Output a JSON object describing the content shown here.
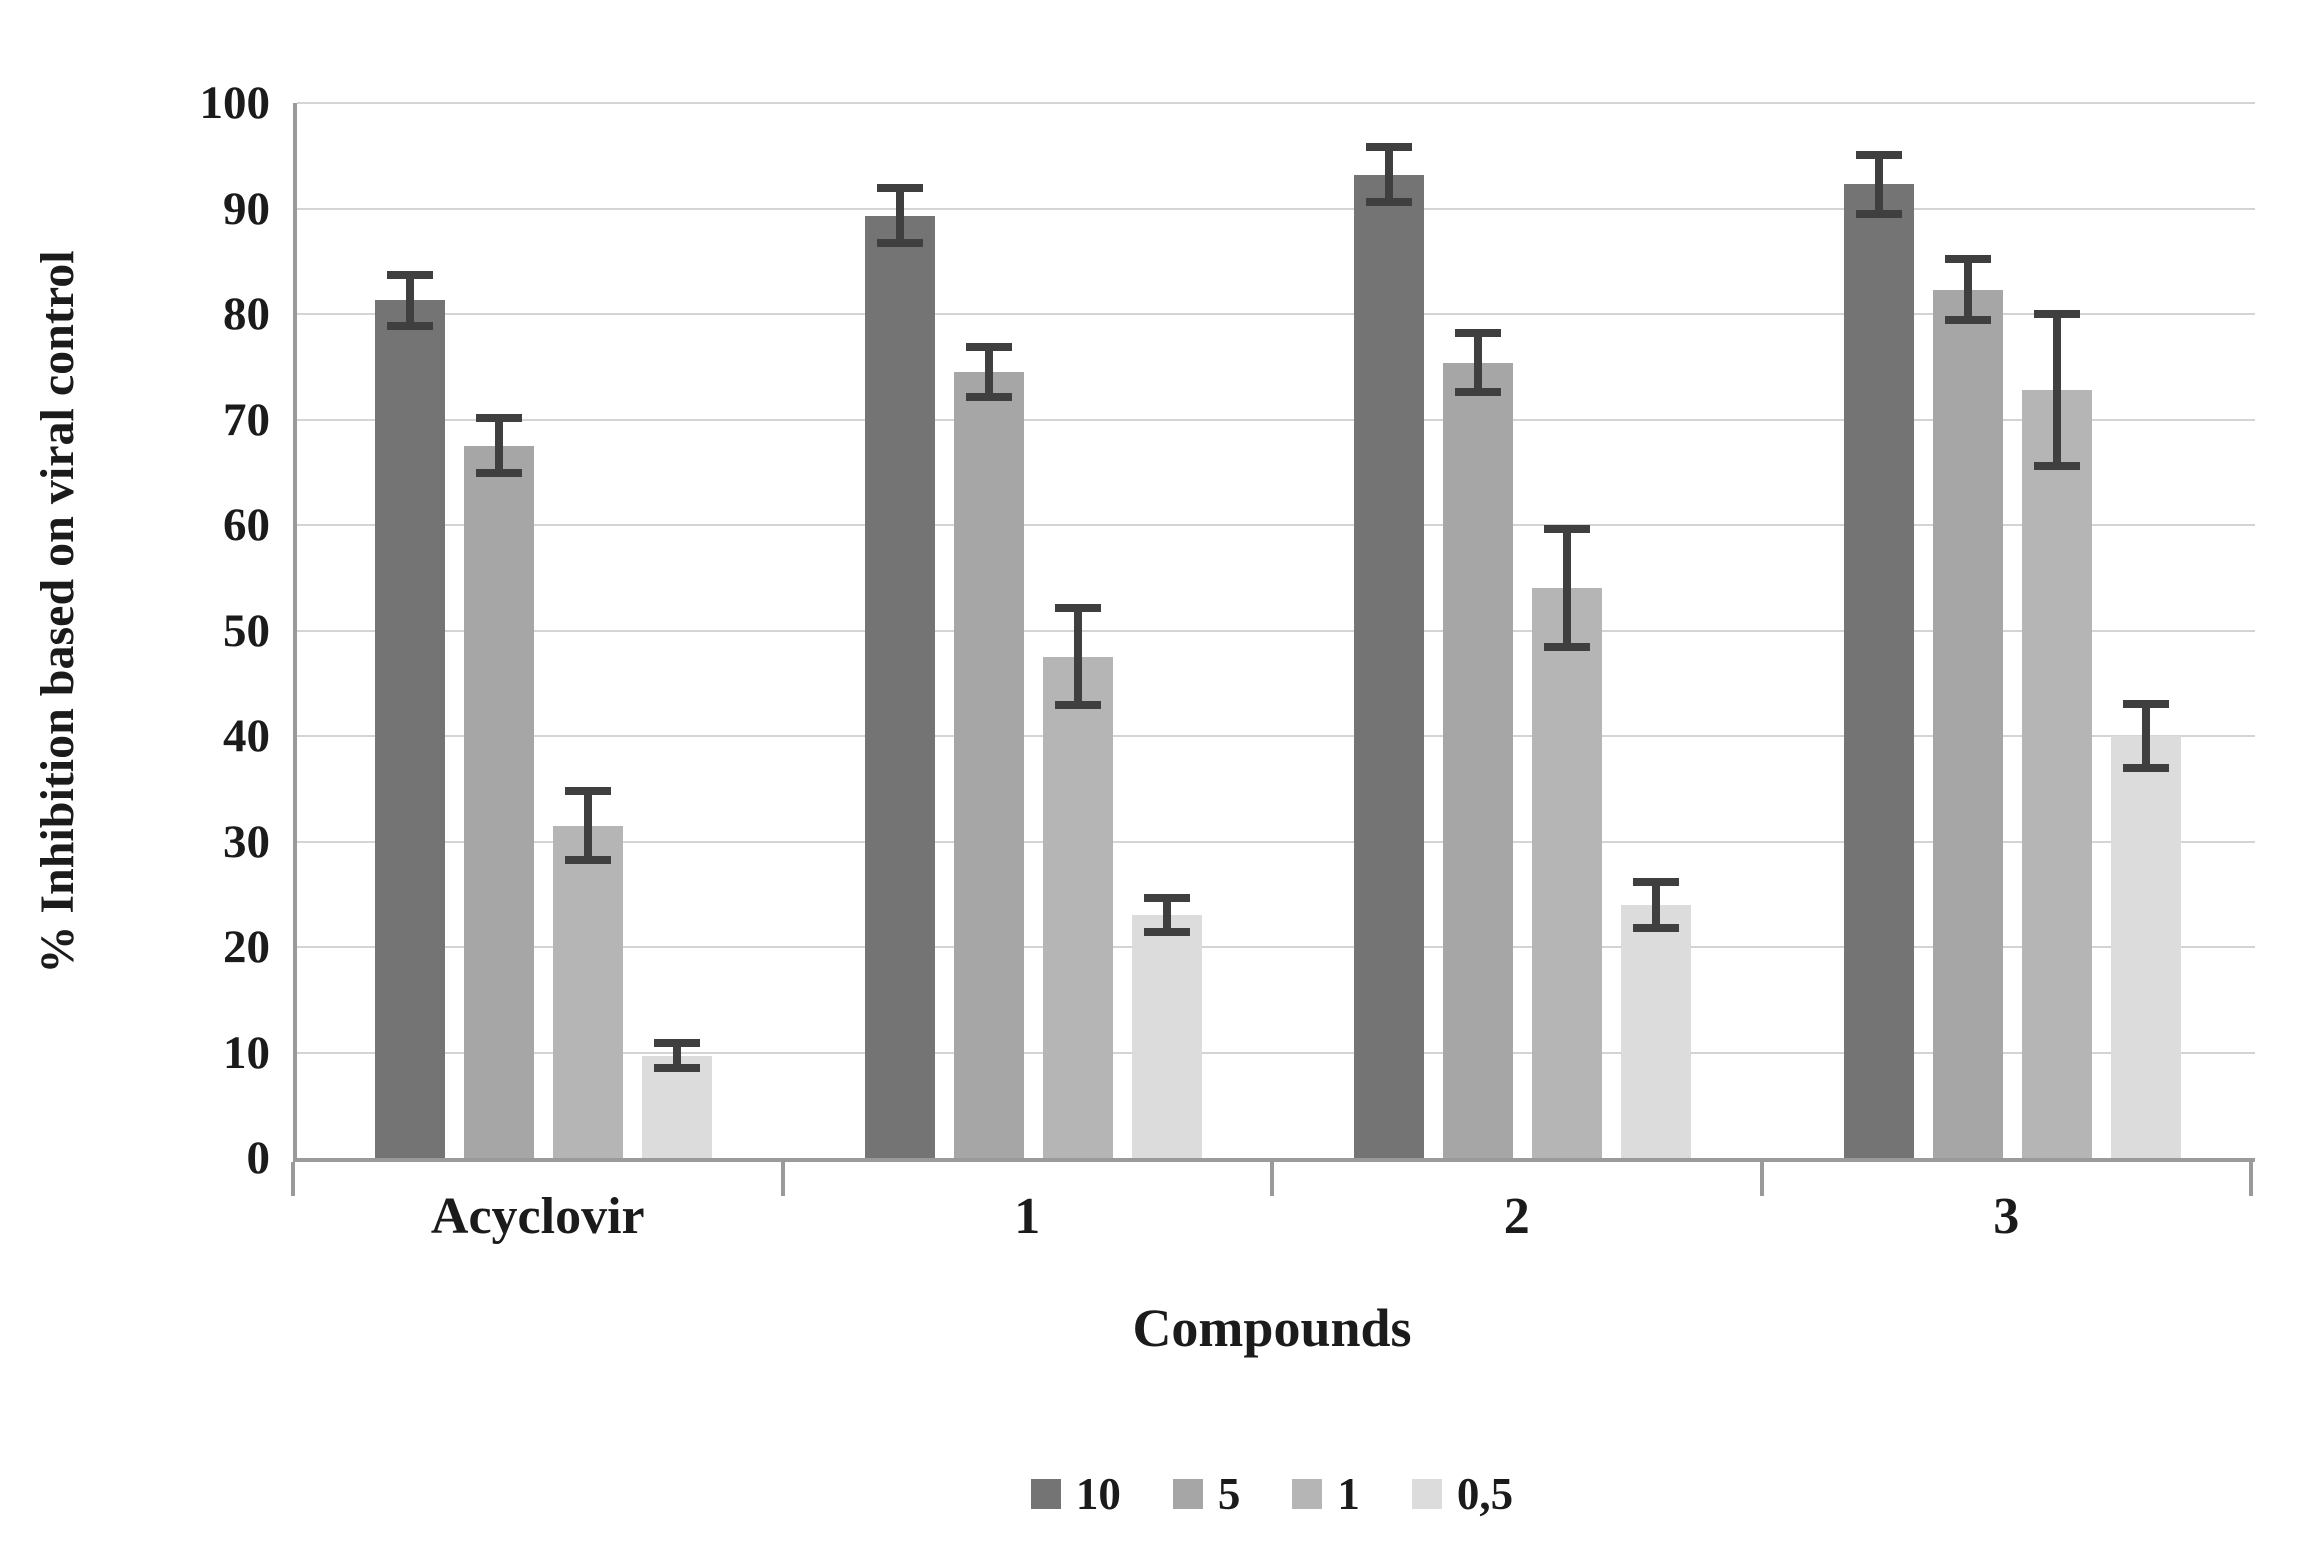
{
  "chart_data": {
    "type": "bar",
    "title": "",
    "categories": [
      "Acyclovir",
      "1",
      "2",
      "3"
    ],
    "series": [
      {
        "name": "10",
        "color": "#747474",
        "values": [
          81.3,
          89.3,
          93.2,
          92.3
        ],
        "errors": [
          2.4,
          2.6,
          2.6,
          2.8
        ]
      },
      {
        "name": "5",
        "color": "#a6a6a6",
        "values": [
          67.5,
          74.5,
          75.4,
          82.3
        ],
        "errors": [
          2.6,
          2.4,
          2.8,
          2.9
        ]
      },
      {
        "name": "1",
        "color": "#b5b5b5",
        "values": [
          31.5,
          47.5,
          54.0,
          72.8
        ],
        "errors": [
          3.3,
          4.6,
          5.6,
          7.2
        ]
      },
      {
        "name": "0,5",
        "color": "#dcdcdc",
        "values": [
          9.7,
          23.0,
          24.0,
          40.0
        ],
        "errors": [
          1.2,
          1.6,
          2.2,
          3.0
        ]
      }
    ],
    "xlabel": "Compounds",
    "ylabel": "% Inhibition based on viral control",
    "ylim": [
      0,
      100
    ],
    "ytick_step": 10,
    "grid": true,
    "legend_position": "bottom"
  },
  "colors": {
    "axis": "#9a9a9a",
    "gridline": "#d4d4d4",
    "error_bar": "#3f3f3f",
    "text": "#1b1b1b",
    "background": "#ffffff"
  }
}
